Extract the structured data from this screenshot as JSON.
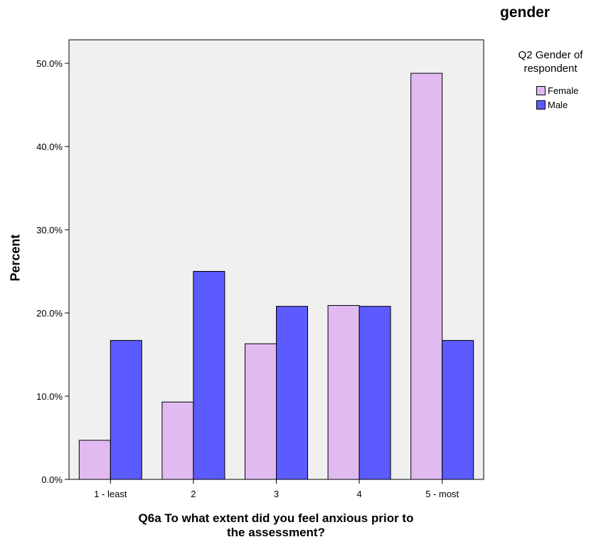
{
  "header": {
    "corner_title": "gender"
  },
  "legend": {
    "title_line1": "Q2 Gender of",
    "title_line2": "respondent",
    "items": [
      {
        "label": "Female",
        "color": "#e0baf0"
      },
      {
        "label": "Male",
        "color": "#5b5bff"
      }
    ]
  },
  "chart_data": {
    "type": "bar",
    "title": "gender",
    "xlabel_line1": "Q6a To what extent did you feel anxious prior to",
    "xlabel_line2": "the assessment?",
    "ylabel": "Percent",
    "categories": [
      "1 - least",
      "2",
      "3",
      "4",
      "5 - most"
    ],
    "series": [
      {
        "name": "Female",
        "color": "#e0baf0",
        "values": [
          4.7,
          9.3,
          16.3,
          20.9,
          48.8
        ]
      },
      {
        "name": "Male",
        "color": "#5b5bff",
        "values": [
          16.7,
          25.0,
          20.8,
          20.8,
          16.7
        ]
      }
    ],
    "ylim": [
      0,
      50
    ],
    "yticks": [
      0,
      10,
      20,
      30,
      40,
      50
    ],
    "ytick_labels": [
      "0.0%",
      "10.0%",
      "20.0%",
      "30.0%",
      "40.0%",
      "50.0%"
    ],
    "plot_background": "#f0f0f0",
    "grid": false,
    "legend_position": "right"
  }
}
